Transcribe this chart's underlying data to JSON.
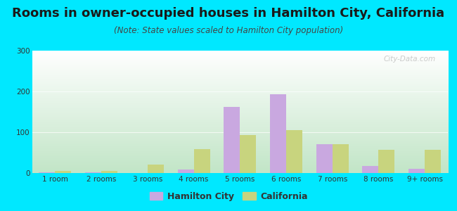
{
  "title": "Rooms in owner-occupied houses in Hamilton City, California",
  "subtitle": "(Note: State values scaled to Hamilton City population)",
  "categories": [
    "1 room",
    "2 rooms",
    "3 rooms",
    "4 rooms",
    "5 rooms",
    "6 rooms",
    "7 rooms",
    "8 rooms",
    "9+ rooms"
  ],
  "hamilton_city": [
    2,
    2,
    0,
    8,
    162,
    193,
    70,
    17,
    10
  ],
  "california": [
    5,
    5,
    20,
    58,
    93,
    105,
    70,
    57,
    57
  ],
  "hamilton_color": "#c9a8e0",
  "california_color": "#c8d47e",
  "background_color": "#00e8ff",
  "ylim": [
    0,
    300
  ],
  "yticks": [
    0,
    100,
    200,
    300
  ],
  "bar_width": 0.35,
  "title_fontsize": 13,
  "subtitle_fontsize": 8.5,
  "tick_fontsize": 7.5,
  "legend_fontsize": 9,
  "watermark": "City-Data.com"
}
